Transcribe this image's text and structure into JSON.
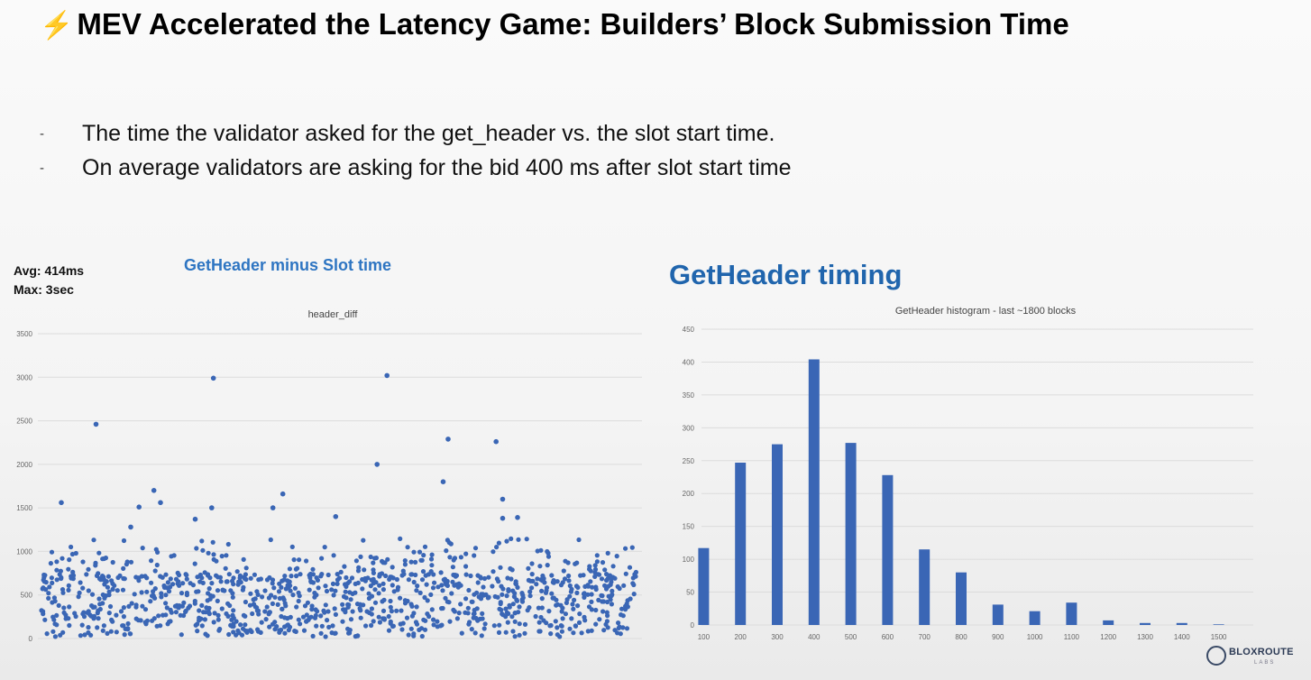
{
  "title": {
    "icon": "lightning-bolt-icon",
    "icon_glyph": "⚡",
    "text": "MEV Accelerated the Latency Game: Builders’ Block Submission Time"
  },
  "bullets": [
    "The time the validator asked for the get_header vs. the slot start time.",
    "On average validators are asking for the bid 400 ms after slot start time"
  ],
  "bullet_marker": "-",
  "stats": {
    "avg": "Avg: 414ms",
    "max": "Max: 3sec"
  },
  "left_heading": "GetHeader minus Slot time",
  "right_heading": "GetHeader timing",
  "logo": {
    "name": "BLOXROUTE",
    "sub": "LABS"
  },
  "colors": {
    "series": "#3a66b5",
    "heading_left": "#2e75c2",
    "heading_right": "#2065ad",
    "bolt": "#f4b400",
    "grid": "#dcdcdc"
  },
  "chart_data": [
    {
      "type": "scatter",
      "title": "header_diff",
      "ylim": [
        0,
        3500
      ],
      "yticks": [
        0,
        500,
        1000,
        1500,
        2000,
        2500,
        3000,
        3500
      ],
      "n_points_approx": 1800,
      "series": [
        {
          "name": "",
          "color": "#3a66b5"
        }
      ],
      "notable_points": [
        {
          "x": 165,
          "y": 2460
        },
        {
          "x": 520,
          "y": 2990
        },
        {
          "x": 1045,
          "y": 3020
        },
        {
          "x": 1015,
          "y": 2000
        },
        {
          "x": 1230,
          "y": 2290
        },
        {
          "x": 1375,
          "y": 2260
        },
        {
          "x": 1215,
          "y": 1800
        },
        {
          "x": 340,
          "y": 1700
        },
        {
          "x": 360,
          "y": 1560
        },
        {
          "x": 60,
          "y": 1560
        },
        {
          "x": 730,
          "y": 1660
        },
        {
          "x": 700,
          "y": 1500
        },
        {
          "x": 515,
          "y": 1500
        },
        {
          "x": 465,
          "y": 1370
        },
        {
          "x": 890,
          "y": 1400
        },
        {
          "x": 1395,
          "y": 1600
        },
        {
          "x": 1395,
          "y": 1380
        },
        {
          "x": 1440,
          "y": 1390
        },
        {
          "x": 295,
          "y": 1510
        },
        {
          "x": 270,
          "y": 1280
        }
      ],
      "bulk_range": [
        0,
        1000
      ],
      "mean": 414,
      "max": 3000
    },
    {
      "type": "bar",
      "title": "GetHeader histogram - last ~1800 blocks",
      "categories": [
        "100",
        "200",
        "300",
        "400",
        "500",
        "600",
        "700",
        "800",
        "900",
        "1000",
        "1100",
        "1200",
        "1300",
        "1400",
        "1500"
      ],
      "values": [
        117,
        247,
        275,
        404,
        277,
        228,
        115,
        80,
        31,
        21,
        34,
        7,
        3,
        3,
        1
      ],
      "ylim": [
        0,
        450
      ],
      "yticks": [
        0,
        50,
        100,
        150,
        200,
        250,
        300,
        350,
        400,
        450
      ],
      "grid": true
    }
  ]
}
